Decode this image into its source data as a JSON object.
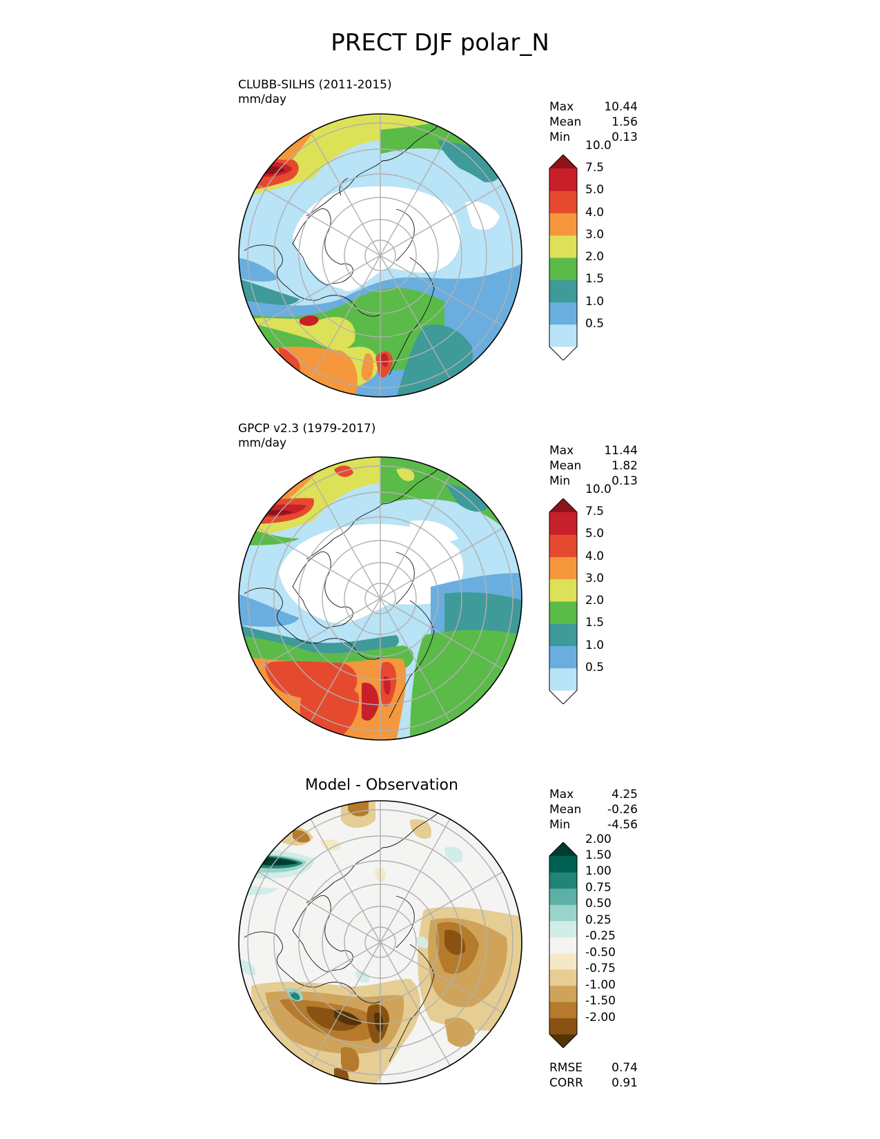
{
  "title": "PRECT DJF polar_N",
  "panels": [
    {
      "id": "test",
      "title": "CLUBB-SILHS (2011-2015)",
      "units": "mm/day",
      "stats": [
        {
          "label": "Max",
          "value": "10.44"
        },
        {
          "label": "Mean",
          "value": "1.56"
        },
        {
          "label": "Min",
          "value": "0.13"
        }
      ],
      "colorbar": {
        "ticks": [
          "10.0",
          "7.5",
          "5.0",
          "4.0",
          "3.0",
          "2.0",
          "1.5",
          "1.0",
          "0.5"
        ],
        "colors": [
          "#ffffff",
          "#b9e3f6",
          "#6aaee0",
          "#3f9a9a",
          "#5bbb49",
          "#dde157",
          "#f5973d",
          "#e64a2e",
          "#c8202a",
          "#8e1419"
        ]
      }
    },
    {
      "id": "reference",
      "title": "GPCP v2.3 (1979-2017)",
      "units": "mm/day",
      "stats": [
        {
          "label": "Max",
          "value": "11.44"
        },
        {
          "label": "Mean",
          "value": "1.82"
        },
        {
          "label": "Min",
          "value": "0.13"
        }
      ],
      "colorbar": {
        "ticks": [
          "10.0",
          "7.5",
          "5.0",
          "4.0",
          "3.0",
          "2.0",
          "1.5",
          "1.0",
          "0.5"
        ],
        "colors": [
          "#ffffff",
          "#b9e3f6",
          "#6aaee0",
          "#3f9a9a",
          "#5bbb49",
          "#dde157",
          "#f5973d",
          "#e64a2e",
          "#c8202a",
          "#8e1419"
        ]
      }
    },
    {
      "id": "diff",
      "title": "Model - Observation",
      "stats": [
        {
          "label": "Max",
          "value": "4.25"
        },
        {
          "label": "Mean",
          "value": "-0.26"
        },
        {
          "label": "Min",
          "value": "-4.56"
        }
      ],
      "metrics": [
        {
          "label": "RMSE",
          "value": "0.74"
        },
        {
          "label": "CORR",
          "value": "0.91"
        }
      ],
      "colorbar": {
        "ticks": [
          "2.00",
          "1.50",
          "1.00",
          "0.75",
          "0.50",
          "0.25",
          "-0.25",
          "-0.50",
          "-0.75",
          "-1.00",
          "-1.50",
          "-2.00"
        ],
        "colors": [
          "#563207",
          "#8a5212",
          "#b57a2c",
          "#cfa359",
          "#e5cd93",
          "#f5e8c6",
          "#f4f4f2",
          "#d2ece8",
          "#99d4cb",
          "#5cb0a6",
          "#218475",
          "#006153",
          "#003d30"
        ]
      }
    }
  ]
}
